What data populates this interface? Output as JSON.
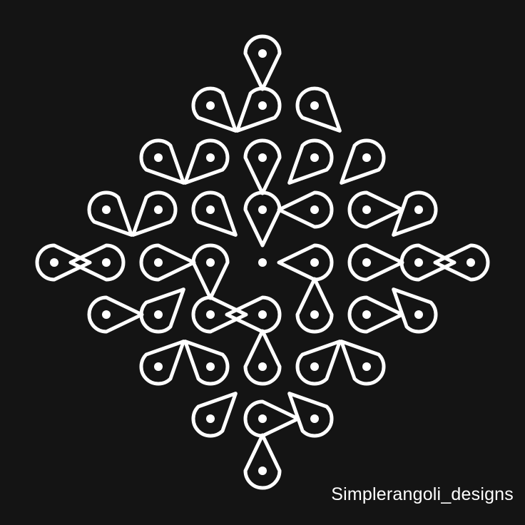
{
  "artwork": {
    "background_color": "#141414",
    "line_color": "#ffffff",
    "dot_color": "#ffffff",
    "dot_grid": "diamond 5-4-5-4-5 pattern of pulli dots",
    "dot_count": 41
  },
  "watermark": {
    "text": "Simplerangoli_designs"
  }
}
